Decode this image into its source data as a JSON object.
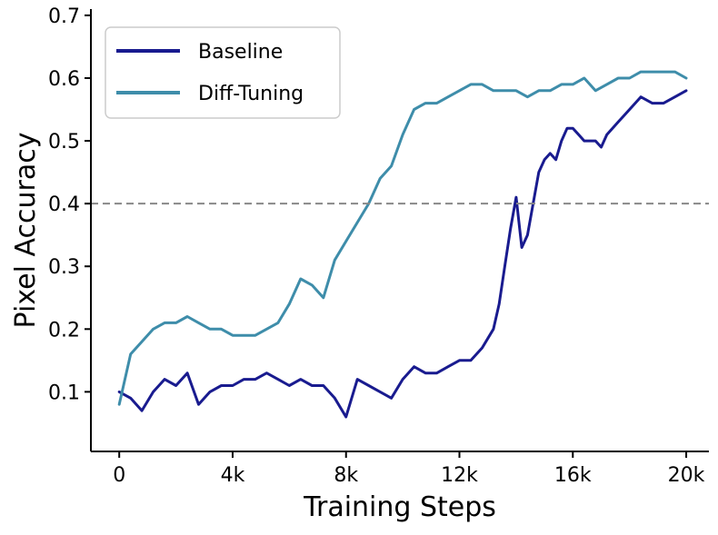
{
  "chart_data": {
    "type": "line",
    "title": "",
    "xlabel": "Training Steps",
    "ylabel": "Pixel Accuracy",
    "xlim": [
      -1000,
      20800
    ],
    "ylim": [
      0.005,
      0.71
    ],
    "xticks": [
      0,
      4000,
      8000,
      12000,
      16000,
      20000
    ],
    "xtick_labels": [
      "0",
      "4k",
      "8k",
      "12k",
      "16k",
      "20k"
    ],
    "yticks": [
      0.1,
      0.2,
      0.3,
      0.4,
      0.5,
      0.6,
      0.7
    ],
    "ytick_labels": [
      "0.1",
      "0.2",
      "0.3",
      "0.4",
      "0.5",
      "0.6",
      "0.7"
    ],
    "reference_line": {
      "y": 0.4,
      "style": "dashed",
      "color": "#888888"
    },
    "grid": false,
    "legend_position": "top-left",
    "series": [
      {
        "name": "Baseline",
        "color": "#191b8f",
        "x": [
          0,
          400,
          800,
          1200,
          1600,
          2000,
          2400,
          2800,
          3200,
          3600,
          4000,
          4400,
          4800,
          5200,
          5600,
          6000,
          6400,
          6800,
          7200,
          7600,
          8000,
          8400,
          8800,
          9200,
          9600,
          10000,
          10400,
          10800,
          11200,
          11600,
          12000,
          12400,
          12800,
          13200,
          13400,
          13600,
          13800,
          14000,
          14200,
          14400,
          14600,
          14800,
          15000,
          15200,
          15400,
          15600,
          15800,
          16000,
          16400,
          16800,
          17000,
          17200,
          17600,
          18000,
          18400,
          18800,
          19200,
          19600,
          20000
        ],
        "y": [
          0.1,
          0.09,
          0.07,
          0.1,
          0.12,
          0.11,
          0.13,
          0.08,
          0.1,
          0.11,
          0.11,
          0.12,
          0.12,
          0.13,
          0.12,
          0.11,
          0.12,
          0.11,
          0.11,
          0.09,
          0.06,
          0.12,
          0.11,
          0.1,
          0.09,
          0.12,
          0.14,
          0.13,
          0.13,
          0.14,
          0.15,
          0.15,
          0.17,
          0.2,
          0.24,
          0.3,
          0.36,
          0.41,
          0.33,
          0.35,
          0.4,
          0.45,
          0.47,
          0.48,
          0.47,
          0.5,
          0.52,
          0.52,
          0.5,
          0.5,
          0.49,
          0.51,
          0.53,
          0.55,
          0.57,
          0.56,
          0.56,
          0.57,
          0.58
        ]
      },
      {
        "name": "Diff-Tuning",
        "color": "#3e8daa",
        "x": [
          0,
          400,
          800,
          1200,
          1600,
          2000,
          2400,
          2800,
          3200,
          3600,
          4000,
          4400,
          4800,
          5200,
          5600,
          6000,
          6400,
          6800,
          7200,
          7600,
          8000,
          8400,
          8800,
          9200,
          9600,
          10000,
          10400,
          10800,
          11200,
          11600,
          12000,
          12400,
          12800,
          13200,
          13600,
          14000,
          14400,
          14800,
          15200,
          15600,
          16000,
          16400,
          16800,
          17200,
          17600,
          18000,
          18400,
          18800,
          19200,
          19600,
          20000
        ],
        "y": [
          0.08,
          0.16,
          0.18,
          0.2,
          0.21,
          0.21,
          0.22,
          0.21,
          0.2,
          0.2,
          0.19,
          0.19,
          0.19,
          0.2,
          0.21,
          0.24,
          0.28,
          0.27,
          0.25,
          0.31,
          0.34,
          0.37,
          0.4,
          0.44,
          0.46,
          0.51,
          0.55,
          0.56,
          0.56,
          0.57,
          0.58,
          0.59,
          0.59,
          0.58,
          0.58,
          0.58,
          0.57,
          0.58,
          0.58,
          0.59,
          0.59,
          0.6,
          0.58,
          0.59,
          0.6,
          0.6,
          0.61,
          0.61,
          0.61,
          0.61,
          0.6
        ]
      }
    ]
  }
}
